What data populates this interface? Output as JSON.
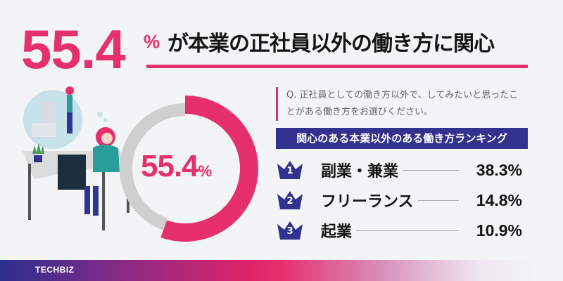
{
  "headline": {
    "value": "55.4",
    "unit": "%",
    "text": "が本業の正社員以外の働き方に関心"
  },
  "question": "Q. 正社員としての働き方以外で、してみたいと思ったことがある働き方をお選びください。",
  "ranking": {
    "title": "関心のある本業以外のある働き方ランキング",
    "items": [
      {
        "rank": "1",
        "label": "副業・兼業",
        "value": "38.3%"
      },
      {
        "rank": "2",
        "label": "フリーランス",
        "value": "14.8%"
      },
      {
        "rank": "3",
        "label": "起業",
        "value": "10.9%"
      }
    ]
  },
  "chart_data": {
    "type": "pie",
    "variant": "donut",
    "categories": [
      "interested",
      "other"
    ],
    "values": [
      55.4,
      44.6
    ],
    "center_label": {
      "value": "55.4",
      "unit": "%"
    },
    "colors": {
      "interested": "#e6306d",
      "other": "#cfcfcf"
    }
  },
  "footer": {
    "brand": "TECHBIZ"
  },
  "colors": {
    "accent": "#e6306d",
    "navy": "#33318e"
  }
}
